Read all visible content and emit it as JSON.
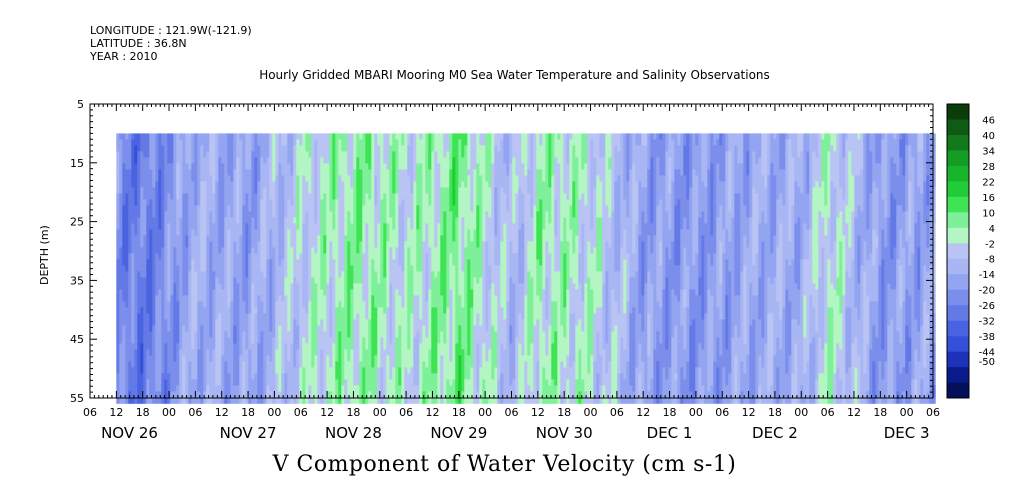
{
  "header": {
    "longitude": "LONGITUDE : 121.9W(-121.9)",
    "latitude": "LATITUDE : 36.8N",
    "year": "YEAR : 2010"
  },
  "chart_data": {
    "type": "heatmap",
    "title": "Hourly Gridded MBARI Mooring M0 Sea Water Temperature and Salinity Observations",
    "xlabel": "V Component of Water Velocity (cm s-1)",
    "ylabel": "DEPTH (m)",
    "ylim": [
      5,
      55
    ],
    "y_inverted": true,
    "y_ticks": [
      5,
      15,
      25,
      35,
      45,
      55
    ],
    "x_range_hours_labels": [
      "06",
      "12",
      "18",
      "00",
      "06",
      "12",
      "18",
      "00",
      "06",
      "12",
      "18",
      "00",
      "06",
      "12",
      "18",
      "00",
      "06",
      "12",
      "18",
      "00",
      "06",
      "12",
      "18",
      "00",
      "06",
      "12",
      "18",
      "00",
      "06",
      "12",
      "18",
      "00",
      "06"
    ],
    "day_labels": [
      "NOV 26",
      "NOV 27",
      "NOV 28",
      "NOV 29",
      "NOV 30",
      "DEC  1",
      "DEC  2",
      "DEC  3"
    ],
    "data_depth_range": [
      10,
      55
    ],
    "colorbar": {
      "labels": [
        "46",
        "40",
        "34",
        "28",
        "22",
        "16",
        "10",
        "4",
        "-2",
        "-8",
        "-14",
        "-20",
        "-26",
        "-32",
        "-38",
        "-44",
        "-50"
      ],
      "colors": [
        "#0a3d0a",
        "#0f5a14",
        "#127a1c",
        "#149c24",
        "#18b52c",
        "#20cc38",
        "#3ee454",
        "#7ef09a",
        "#b4f5c4",
        "#b9c4f5",
        "#a8b6f3",
        "#93a4f0",
        "#7c8eec",
        "#6279e6",
        "#4a63e0",
        "#3550d8",
        "#1c32b8",
        "#0a1a8a",
        "#05105a"
      ],
      "range": [
        -50,
        52
      ]
    },
    "velocity_pattern": [
      {
        "x_hour": 0,
        "v": -12
      },
      {
        "x_hour": 12,
        "v": -20
      },
      {
        "x_hour": 24,
        "v": -6
      },
      {
        "x_hour": 36,
        "v": -10
      },
      {
        "x_hour": 48,
        "v": 2
      },
      {
        "x_hour": 60,
        "v": 10
      },
      {
        "x_hour": 72,
        "v": 4
      },
      {
        "x_hour": 84,
        "v": 12
      },
      {
        "x_hour": 96,
        "v": -4
      },
      {
        "x_hour": 102,
        "v": 8
      },
      {
        "x_hour": 114,
        "v": 4
      },
      {
        "x_hour": 126,
        "v": -10
      },
      {
        "x_hour": 138,
        "v": -12
      },
      {
        "x_hour": 150,
        "v": -8
      },
      {
        "x_hour": 162,
        "v": -6
      },
      {
        "x_hour": 168,
        "v": 6
      },
      {
        "x_hour": 180,
        "v": -12
      },
      {
        "x_hour": 192,
        "v": -8
      }
    ]
  },
  "colors": {
    "frame": "#000000",
    "background": "#ffffff"
  }
}
